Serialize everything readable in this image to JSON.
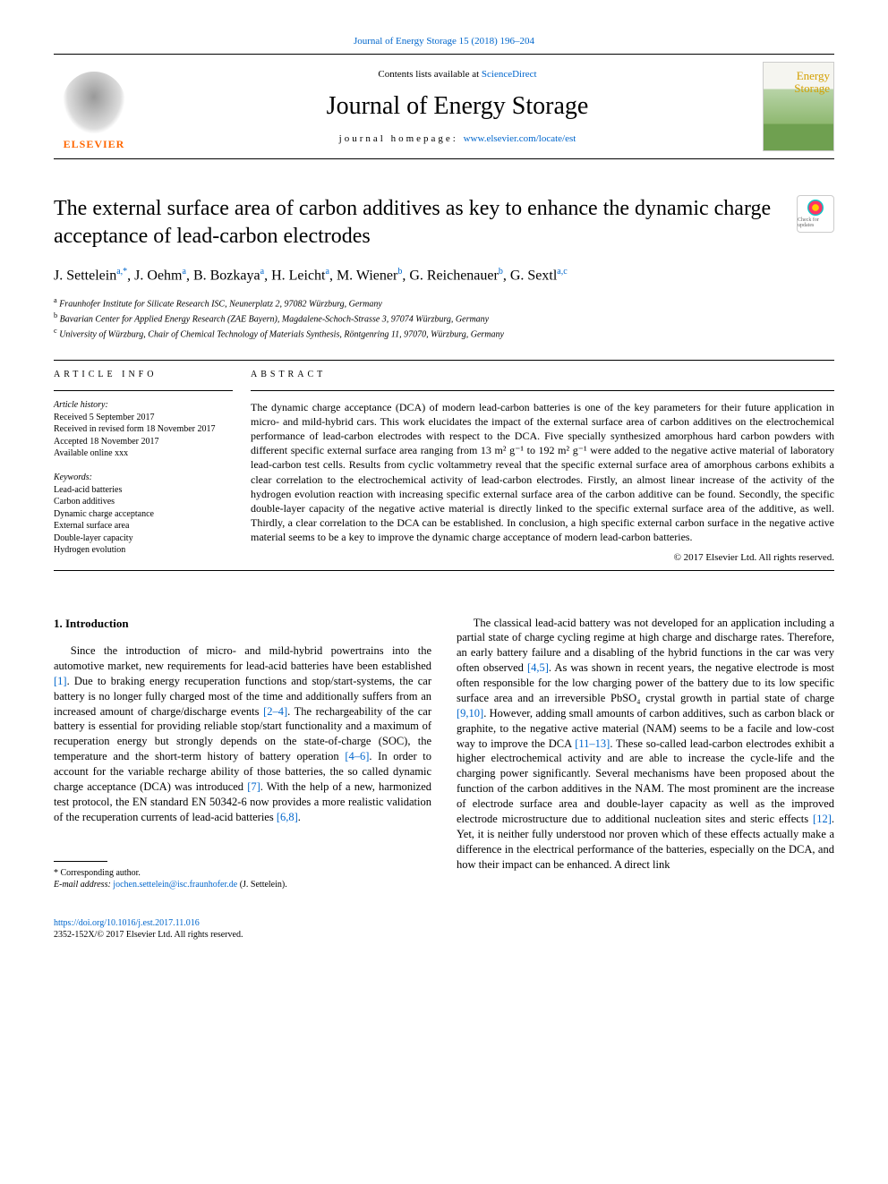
{
  "header": {
    "citation": "Journal of Energy Storage 15 (2018) 196–204",
    "contents_prefix": "Contents lists available at ",
    "contents_link": "ScienceDirect",
    "journal_name": "Journal of Energy Storage",
    "homepage_prefix": "journal homepage: ",
    "homepage_url": "www.elsevier.com/locate/est",
    "publisher_logo_text": "ELSEVIER",
    "cover_title_line1": "Energy",
    "cover_title_line2": "Storage"
  },
  "article": {
    "title": "The external surface area of carbon additives as key to enhance the dynamic charge acceptance of lead-carbon electrodes",
    "crossmark_label": "Check for updates",
    "authors_html": "J. Settelein<sup>a,*</sup>, J. Oehm<sup>a</sup>, B. Bozkaya<sup>a</sup>, H. Leicht<sup>a</sup>, M. Wiener<sup>b</sup>, G. Reichenauer<sup>b</sup>, G. Sextl<sup>a,c</sup>",
    "affiliations": [
      {
        "sup": "a",
        "text": "Fraunhofer Institute for Silicate Research ISC, Neunerplatz 2, 97082 Würzburg, Germany"
      },
      {
        "sup": "b",
        "text": "Bavarian Center for Applied Energy Research (ZAE Bayern), Magdalene-Schoch-Strasse 3, 97074 Würzburg, Germany"
      },
      {
        "sup": "c",
        "text": "University of Würzburg, Chair of Chemical Technology of Materials Synthesis, Röntgenring 11, 97070, Würzburg, Germany"
      }
    ]
  },
  "info": {
    "label": "ARTICLE INFO",
    "history_label": "Article history:",
    "history": [
      "Received 5 September 2017",
      "Received in revised form 18 November 2017",
      "Accepted 18 November 2017",
      "Available online xxx"
    ],
    "keywords_label": "Keywords:",
    "keywords": [
      "Lead-acid batteries",
      "Carbon additives",
      "Dynamic charge acceptance",
      "External surface area",
      "Double-layer capacity",
      "Hydrogen evolution"
    ]
  },
  "abstract": {
    "label": "ABSTRACT",
    "text": "The dynamic charge acceptance (DCA) of modern lead-carbon batteries is one of the key parameters for their future application in micro- and mild-hybrid cars. This work elucidates the impact of the external surface area of carbon additives on the electrochemical performance of lead-carbon electrodes with respect to the DCA. Five specially synthesized amorphous hard carbon powders with different specific external surface area ranging from 13 m² g⁻¹ to 192 m² g⁻¹ were added to the negative active material of laboratory lead-carbon test cells. Results from cyclic voltammetry reveal that the specific external surface area of amorphous carbons exhibits a clear correlation to the electrochemical activity of lead-carbon electrodes. Firstly, an almost linear increase of the activity of the hydrogen evolution reaction with increasing specific external surface area of the carbon additive can be found. Secondly, the specific double-layer capacity of the negative active material is directly linked to the specific external surface area of the additive, as well. Thirdly, a clear correlation to the DCA can be established. In conclusion, a high specific external carbon surface in the negative active material seems to be a key to improve the dynamic charge acceptance of modern lead-carbon batteries.",
    "copyright": "© 2017 Elsevier Ltd. All rights reserved."
  },
  "body": {
    "section_heading": "1. Introduction",
    "col1_html": "Since the introduction of micro- and mild-hybrid powertrains into the automotive market, new requirements for lead-acid batteries have been established <span class=\"ref\">[1]</span>. Due to braking energy recuperation functions and stop/start-systems, the car battery is no longer fully charged most of the time and additionally suffers from an increased amount of charge/discharge events <span class=\"ref\">[2–4]</span>. The rechargeability of the car battery is essential for providing reliable stop/start functionality and a maximum of recuperation energy but strongly depends on the state-of-charge (SOC), the temperature and the short-term history of battery operation <span class=\"ref\">[4–6]</span>. In order to account for the variable recharge ability of those batteries, the so called dynamic charge acceptance (DCA) was introduced <span class=\"ref\">[7]</span>. With the help of a new, harmonized test protocol, the EN standard EN 50342-6 now provides a more realistic validation of the recuperation currents of lead-acid batteries <span class=\"ref\">[6,8]</span>.",
    "col2_html": "The classical lead-acid battery was not developed for an application including a partial state of charge cycling regime at high charge and discharge rates. Therefore, an early battery failure and a disabling of the hybrid functions in the car was very often observed <span class=\"ref\">[4,5]</span>. As was shown in recent years, the negative electrode is most often responsible for the low charging power of the battery due to its low specific surface area and an irreversible PbSO₄ crystal growth in partial state of charge <span class=\"ref\">[9,10]</span>. However, adding small amounts of carbon additives, such as carbon black or graphite, to the negative active material (NAM) seems to be a facile and low-cost way to improve the DCA <span class=\"ref\">[11–13]</span>. These so-called lead-carbon electrodes exhibit a higher electrochemical activity and are able to increase the cycle-life and the charging power significantly. Several mechanisms have been proposed about the function of the carbon additives in the NAM. The most prominent are the increase of electrode surface area and double-layer capacity as well as the improved electrode microstructure due to additional nucleation sites and steric effects <span class=\"ref\">[12]</span>. Yet, it is neither fully understood nor proven which of these effects actually make a difference in the electrical performance of the batteries, especially on the DCA, and how their impact can be enhanced. A direct link"
  },
  "footnote": {
    "corr_label": "* Corresponding author.",
    "email_label": "E-mail address: ",
    "email": "jochen.settelein@isc.fraunhofer.de",
    "email_suffix": " (J. Settelein)."
  },
  "footer": {
    "doi": "https://doi.org/10.1016/j.est.2017.11.016",
    "issn_line": "2352-152X/© 2017 Elsevier Ltd. All rights reserved."
  },
  "colors": {
    "link": "#0066cc",
    "elsevier_orange": "#ff6600"
  }
}
